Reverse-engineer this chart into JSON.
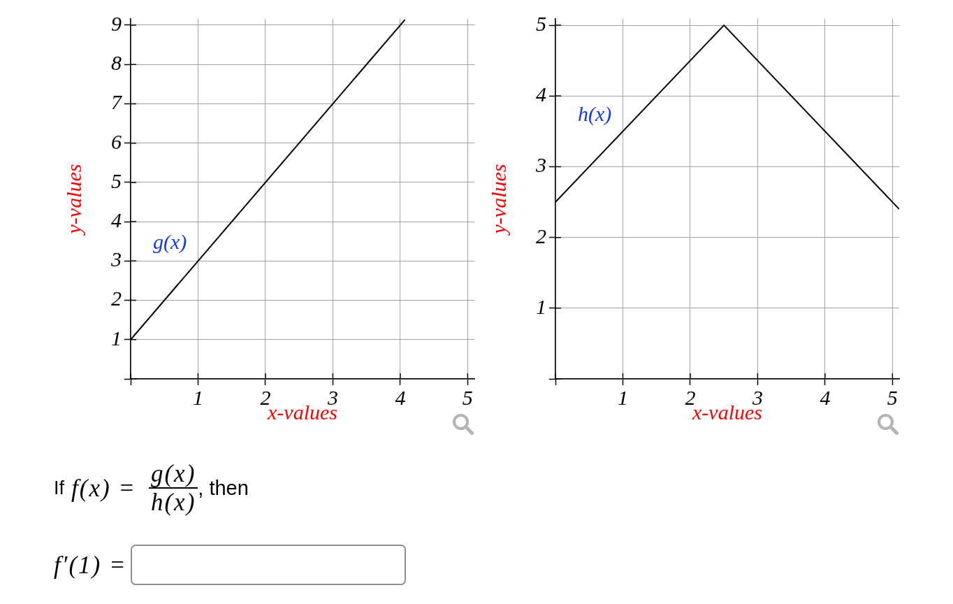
{
  "chart_data": [
    {
      "type": "line",
      "xlabel": "x-values",
      "ylabel": "y-values",
      "series": [
        {
          "name": "g(x)",
          "color": "#000000",
          "x": [
            0,
            4.07
          ],
          "values": [
            1,
            9.14
          ]
        }
      ],
      "xlim": [
        0,
        5.1
      ],
      "ylim": [
        0,
        9.16
      ],
      "xticks": [
        {
          "value": 0,
          "label": null
        },
        1,
        2,
        3,
        4,
        5
      ],
      "yticks": [
        {
          "value": 0,
          "label": null
        },
        1,
        2,
        3,
        4,
        5,
        6,
        7,
        8,
        9
      ],
      "grid": true,
      "legend": false,
      "marker": "none"
    },
    {
      "type": "line",
      "xlabel": "x-values",
      "ylabel": "y-values",
      "series": [
        {
          "name": "h(x)",
          "color": "#000000",
          "x": [
            0,
            2.5,
            5.1
          ],
          "values": [
            2.5,
            5,
            2.4
          ]
        }
      ],
      "xlim": [
        0,
        5.1
      ],
      "ylim": [
        0,
        5.09
      ],
      "xticks": [
        {
          "value": 0,
          "label": null
        },
        1,
        2,
        3,
        4,
        5
      ],
      "yticks": [
        {
          "value": 0,
          "label": null
        },
        1,
        2,
        3,
        4,
        5
      ],
      "grid": true,
      "legend": false,
      "marker": "none"
    },
    {
      "type": "other",
      "annotations": [
        "If",
        "f(x) =",
        "g(x)",
        "h(x)",
        ", then",
        "f′(1) ="
      ]
    }
  ]
}
